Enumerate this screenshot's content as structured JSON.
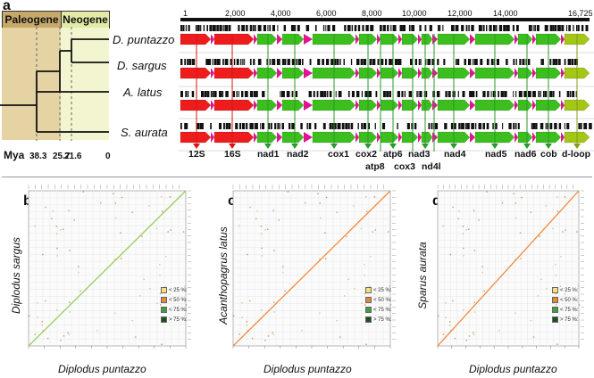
{
  "panel_a": {
    "letter": "a",
    "eras": [
      {
        "label": "Paleogene",
        "color": "#c6a86a"
      },
      {
        "label": "Neogene",
        "color": "#e2eaa6"
      }
    ],
    "mya_label": "Mya",
    "mya_ticks": [
      "38.3",
      "25.7",
      "21.6",
      "0"
    ],
    "species": [
      "D. puntazzo",
      "D. sargus",
      "A. latus",
      "S. aurata"
    ],
    "ruler_labels": [
      "1",
      "2,000",
      "4,000",
      "6,000",
      "8,000",
      "10,000",
      "12,000",
      "14,000",
      "16,725"
    ],
    "genes_row1": [
      "12S",
      "16S",
      "nad1",
      "nad2",
      "cox1",
      "cox2",
      "atp6",
      "nad3",
      "nad4",
      "nad5",
      "nad6",
      "cob",
      "d-loop"
    ],
    "genes_row2": [
      "atp8",
      "cox3",
      "nd4l"
    ],
    "colors": {
      "rrna": "#ee1c1c",
      "protein": "#3cbf1e",
      "trna": "#e0148c",
      "dloop": "#a3c617",
      "marker_red": "#d31717",
      "marker_green": "#2a9a2a"
    }
  },
  "dotplots": [
    {
      "letter": "b",
      "ylabel": "Diplodus sargus",
      "xlabel": "Diplodus puntazzo",
      "line_color": "#9acd5a"
    },
    {
      "letter": "c",
      "ylabel": "Acanthopagrus latus",
      "xlabel": "Diplodus puntazzo",
      "line_color": "#f08a3c"
    },
    {
      "letter": "d",
      "ylabel": "Sparus aurata",
      "xlabel": "Diplodus puntazzo",
      "line_color": "#f08a3c"
    }
  ],
  "legend": [
    {
      "label": "< 25 %:",
      "color": "#f3e27a"
    },
    {
      "label": "< 50 %:",
      "color": "#e08a3a"
    },
    {
      "label": "< 75 %:",
      "color": "#3ca03c"
    },
    {
      "label": "> 75 %:",
      "color": "#1f4f1f"
    }
  ]
}
